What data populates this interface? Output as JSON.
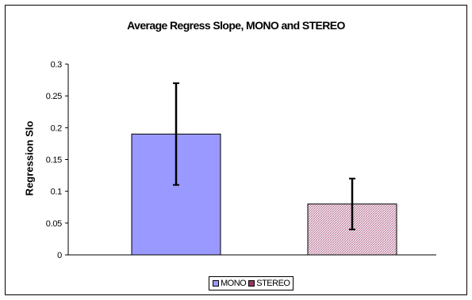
{
  "chart_data": {
    "type": "bar",
    "title": "Average Regress Slope, MONO and STEREO",
    "xlabel": "",
    "ylabel": "Regression Slo",
    "ylim": [
      0,
      0.3
    ],
    "yticks": [
      "0",
      "0.05",
      "0.1",
      "0.15",
      "0.2",
      "0.25",
      "0.3"
    ],
    "grid": false,
    "legend_position": "bottom",
    "series": [
      {
        "name": "MONO",
        "value": 0.19,
        "error_low": 0.11,
        "error_high": 0.27,
        "color": "#9999ff",
        "pattern": "solid"
      },
      {
        "name": "STEREO",
        "value": 0.08,
        "error_low": 0.04,
        "error_high": 0.12,
        "color": "#993366",
        "pattern": "crosshatch"
      }
    ]
  }
}
